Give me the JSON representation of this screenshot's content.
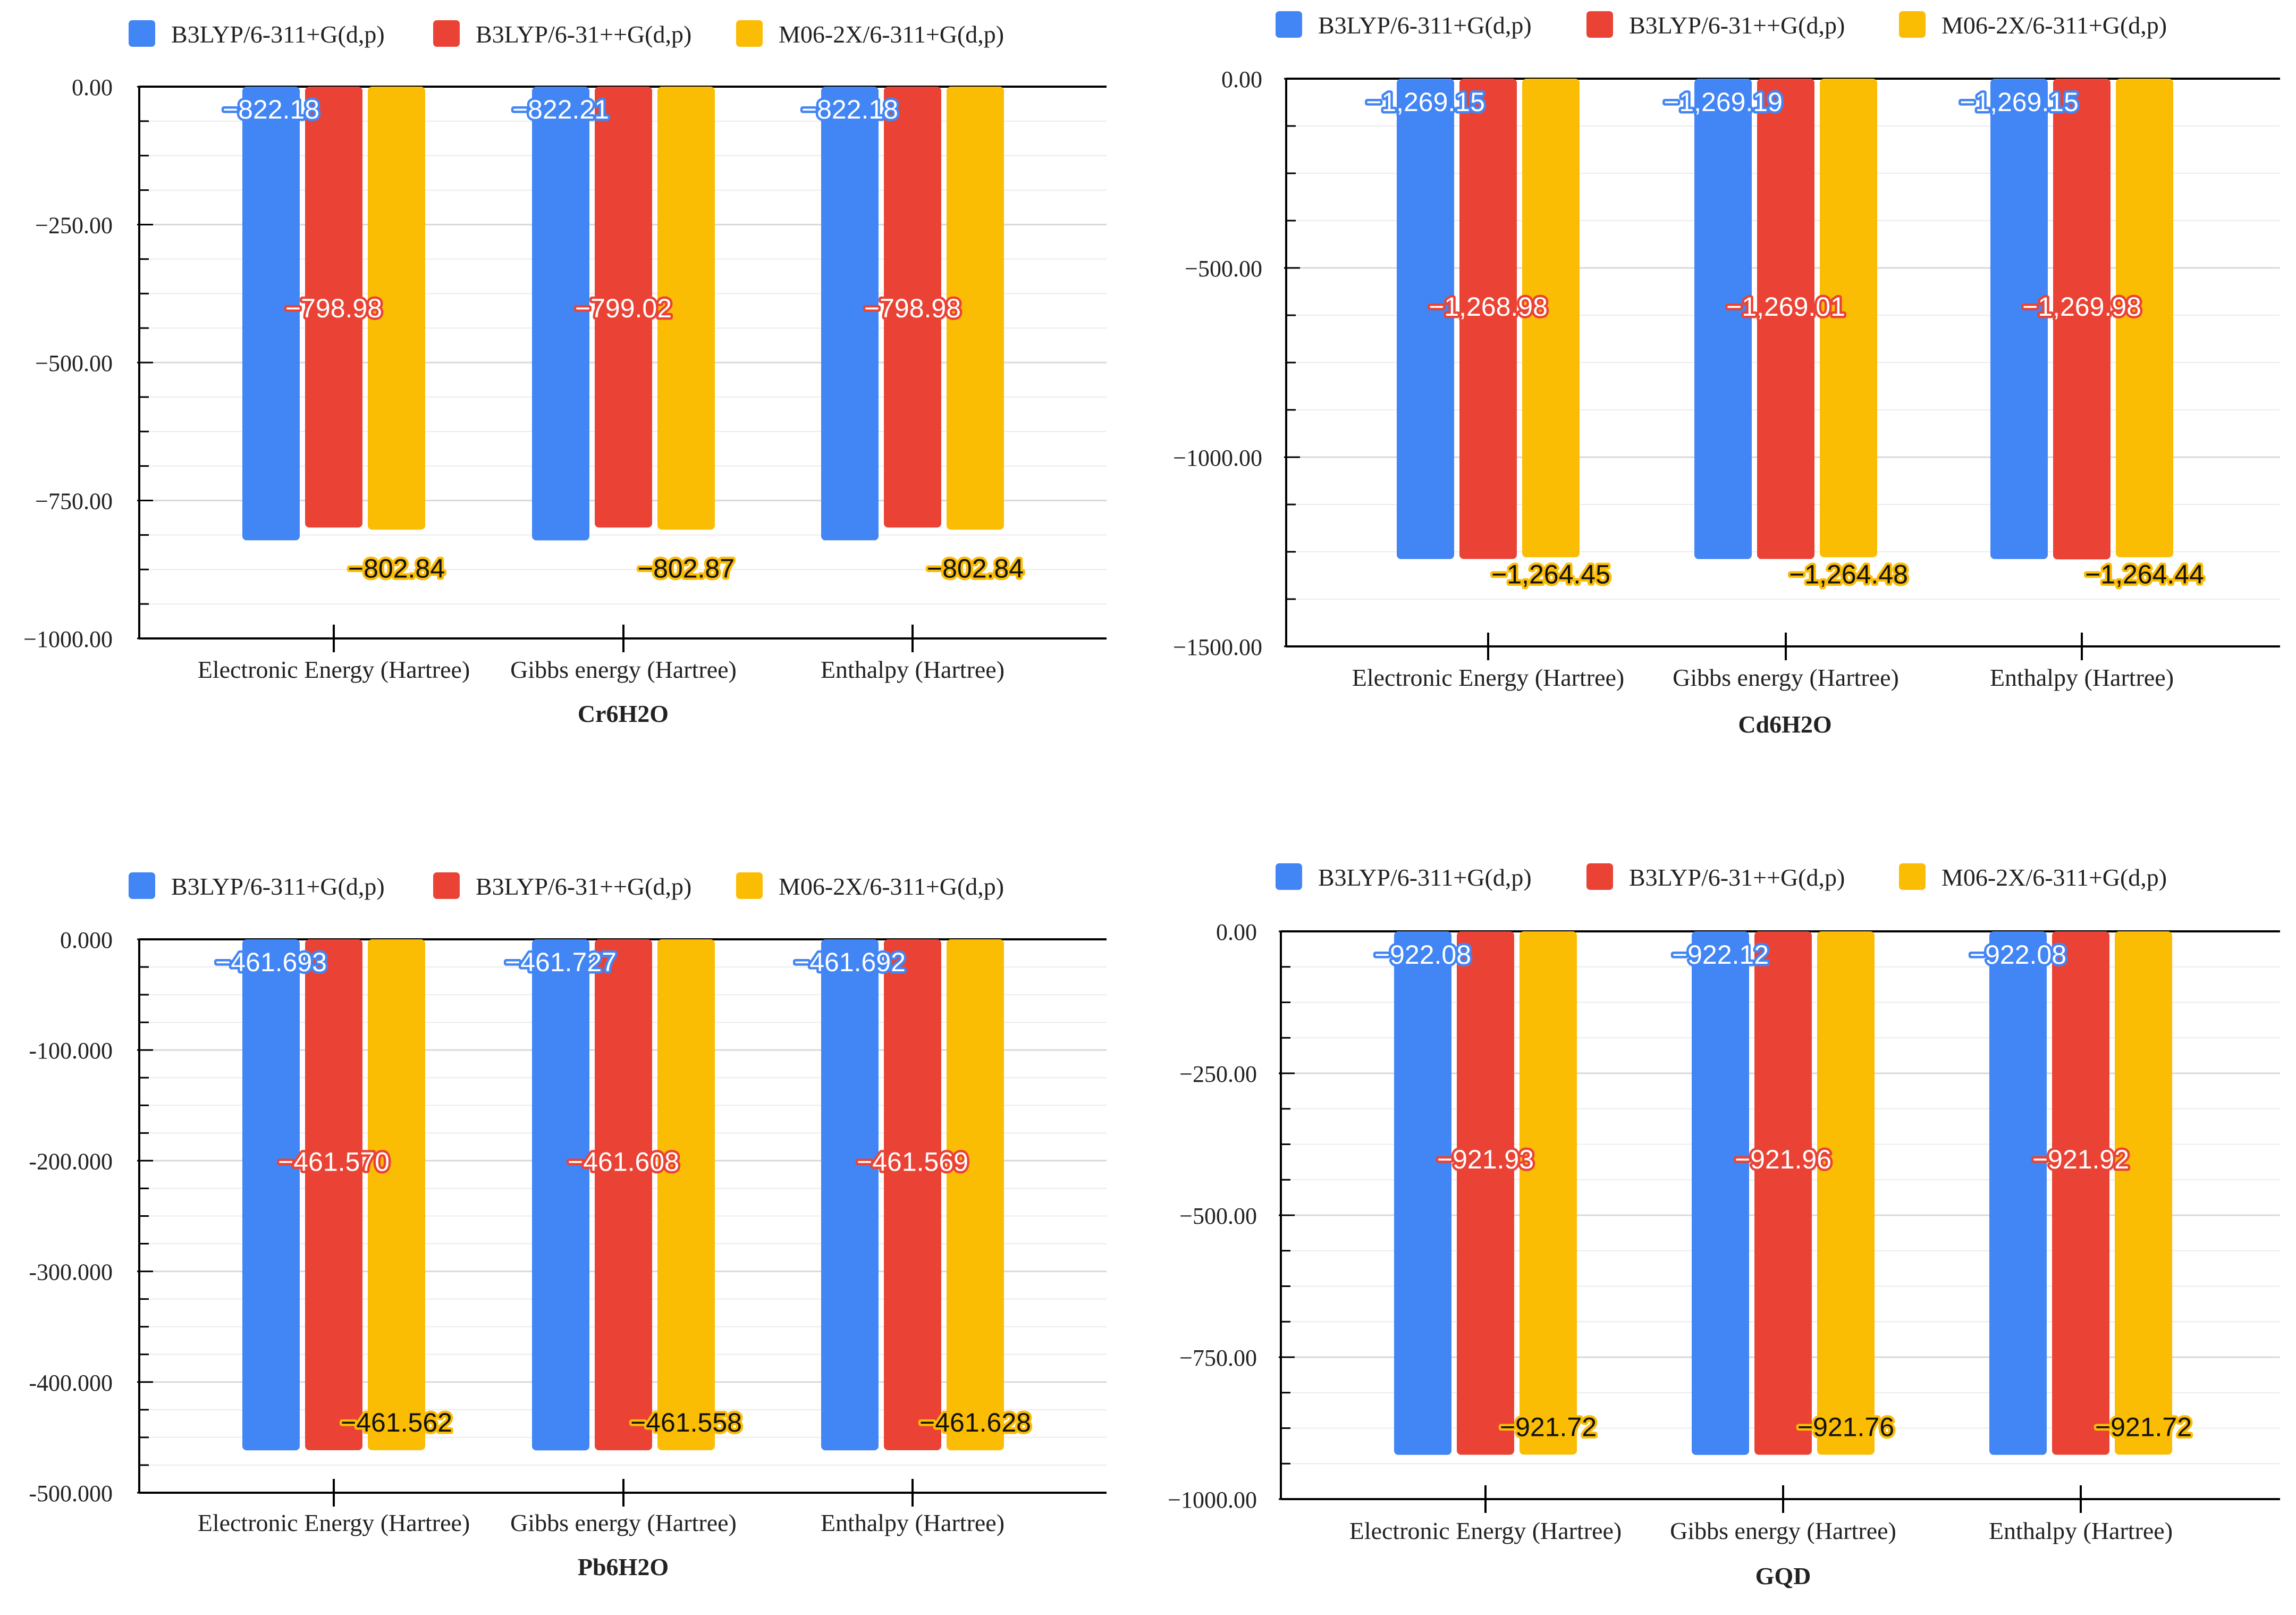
{
  "colors": {
    "s1": "#4285F4",
    "s2": "#EA4335",
    "s3": "#FBBC04",
    "grid": "#d9d9d9",
    "axis": "#000000",
    "text": "#222222"
  },
  "chart_data": [
    {
      "type": "bar",
      "title": "Cr6H2O",
      "xlabel": "Cr6H2O",
      "ylabel": "",
      "categories": [
        "Electronic Energy (Hartree)",
        "Gibbs energy (Hartree)",
        "Enthalpy (Hartree)"
      ],
      "series": [
        {
          "name": "B3LYP/6-311+G(d,p)",
          "values": [
            -822.18,
            -822.21,
            -822.18
          ],
          "labels": [
            "−822.18",
            "−822.21",
            "−822.18"
          ]
        },
        {
          "name": "B3LYP/6-31++G(d,p)",
          "values": [
            -798.98,
            -799.02,
            -798.98
          ],
          "labels": [
            "−798.98",
            "−799.02",
            "−798.98"
          ]
        },
        {
          "name": "M06-2X/6-311+G(d,p)",
          "values": [
            -802.84,
            -802.87,
            -802.84
          ],
          "labels": [
            "−802.84",
            "−802.87",
            "−802.84"
          ]
        }
      ],
      "ylim": [
        -1000,
        0
      ],
      "yticks": [
        0,
        -250,
        -500,
        -750,
        -1000
      ],
      "ytick_labels": [
        "0.00",
        "−250.00",
        "−500.00",
        "−750.00",
        "−1000.00"
      ],
      "legend": "top"
    },
    {
      "type": "bar",
      "title": "Cd6H2O",
      "xlabel": "Cd6H2O",
      "ylabel": "",
      "categories": [
        "Electronic Energy (Hartree)",
        "Gibbs energy (Hartree)",
        "Enthalpy (Hartree)"
      ],
      "series": [
        {
          "name": "B3LYP/6-311+G(d,p)",
          "values": [
            -1269.15,
            -1269.19,
            -1269.15
          ],
          "labels": [
            "−1,269.15",
            "−1,269.19",
            "−1,269.15"
          ]
        },
        {
          "name": "B3LYP/6-31++G(d,p)",
          "values": [
            -1268.98,
            -1269.01,
            -1269.98
          ],
          "labels": [
            "−1,268.98",
            "−1,269.01",
            "−1,269.98"
          ]
        },
        {
          "name": "M06-2X/6-311+G(d,p)",
          "values": [
            -1264.45,
            -1264.48,
            -1264.44
          ],
          "labels": [
            "−1,264.45",
            "−1,264.48",
            "−1,264.44"
          ]
        }
      ],
      "ylim": [
        -1500,
        0
      ],
      "yticks": [
        0,
        -500,
        -1000,
        -1500
      ],
      "ytick_labels": [
        "0.00",
        "−500.00",
        "−1000.00",
        "−1500.00"
      ],
      "legend": "top"
    },
    {
      "type": "bar",
      "title": "Pb6H2O",
      "xlabel": "Pb6H2O",
      "ylabel": "",
      "categories": [
        "Electronic Energy (Hartree)",
        "Gibbs energy (Hartree)",
        "Enthalpy (Hartree)"
      ],
      "series": [
        {
          "name": "B3LYP/6-311+G(d,p)",
          "values": [
            -461.693,
            -461.727,
            -461.692
          ],
          "labels": [
            "−461.693",
            "−461.727",
            "−461.692"
          ]
        },
        {
          "name": "B3LYP/6-31++G(d,p)",
          "values": [
            -461.57,
            -461.608,
            -461.569
          ],
          "labels": [
            "−461.570",
            "−461.608",
            "−461.569"
          ]
        },
        {
          "name": "M06-2X/6-311+G(d,p)",
          "values": [
            -461.562,
            -461.558,
            -461.628
          ],
          "labels": [
            "−461.562",
            "−461.558",
            "−461.628"
          ]
        }
      ],
      "ylim": [
        -500,
        0
      ],
      "yticks": [
        0,
        -100,
        -200,
        -300,
        -400,
        -500
      ],
      "ytick_labels": [
        "0.000",
        "-100.000",
        "-200.000",
        "-300.000",
        "-400.000",
        "-500.000"
      ],
      "legend": "top"
    },
    {
      "type": "bar",
      "title": "GQD",
      "xlabel": "GQD",
      "ylabel": "",
      "categories": [
        "Electronic Energy (Hartree)",
        "Gibbs energy (Hartree)",
        "Enthalpy (Hartree)"
      ],
      "series": [
        {
          "name": "B3LYP/6-311+G(d,p)",
          "values": [
            -922.08,
            -922.12,
            -922.08
          ],
          "labels": [
            "−922.08",
            "−922.12",
            "−922.08"
          ]
        },
        {
          "name": "B3LYP/6-31++G(d,p)",
          "values": [
            -921.93,
            -921.96,
            -921.92
          ],
          "labels": [
            "−921.93",
            "−921.96",
            "−921.92"
          ]
        },
        {
          "name": "M06-2X/6-311+G(d,p)",
          "values": [
            -921.72,
            -921.76,
            -921.72
          ],
          "labels": [
            "−921.72",
            "−921.76",
            "−921.72"
          ]
        }
      ],
      "ylim": [
        -1000,
        0
      ],
      "yticks": [
        0,
        -250,
        -500,
        -750,
        -1000
      ],
      "ytick_labels": [
        "0.00",
        "−250.00",
        "−500.00",
        "−750.00",
        "−1000.00"
      ],
      "legend": "top"
    }
  ]
}
